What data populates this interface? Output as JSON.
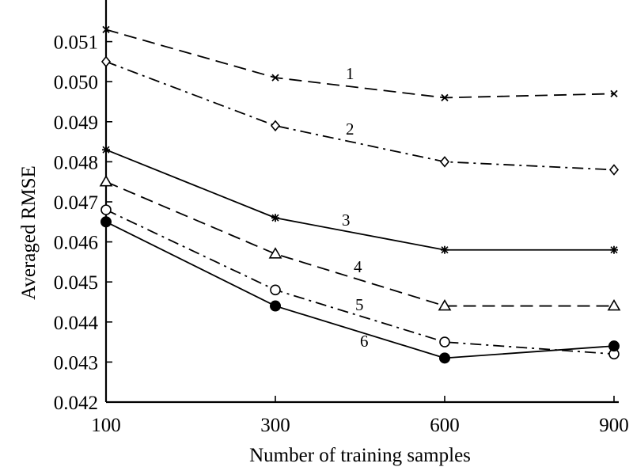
{
  "chart_data": {
    "type": "line",
    "title": "",
    "xlabel": "Number of training samples",
    "ylabel": "Averaged RMSE",
    "categories": [
      "100",
      "300",
      "600",
      "900"
    ],
    "ylim": [
      0.042,
      0.052
    ],
    "yticks": [
      "0.042",
      "0.043",
      "0.044",
      "0.045",
      "0.046",
      "0.047",
      "0.048",
      "0.049",
      "0.050",
      "0.051"
    ],
    "grid": false,
    "legend": "none",
    "series": [
      {
        "label": "1",
        "values": [
          0.0513,
          0.0501,
          0.0496,
          0.0497
        ],
        "line_style": "dashed",
        "marker": "x"
      },
      {
        "label": "2",
        "values": [
          0.0505,
          0.0489,
          0.048,
          0.0478
        ],
        "line_style": "dash-dot",
        "marker": "diamond"
      },
      {
        "label": "3",
        "values": [
          0.0483,
          0.0466,
          0.0458,
          0.0458
        ],
        "line_style": "solid",
        "marker": "asterisk"
      },
      {
        "label": "4",
        "values": [
          0.0475,
          0.0457,
          0.0444,
          0.0444
        ],
        "line_style": "dashed",
        "marker": "triangle"
      },
      {
        "label": "5",
        "values": [
          0.0468,
          0.0448,
          0.0435,
          0.0432
        ],
        "line_style": "dash-dot",
        "marker": "open-circle"
      },
      {
        "label": "6",
        "values": [
          0.0465,
          0.0444,
          0.0431,
          0.0434
        ],
        "line_style": "solid",
        "marker": "filled-circle"
      }
    ]
  }
}
